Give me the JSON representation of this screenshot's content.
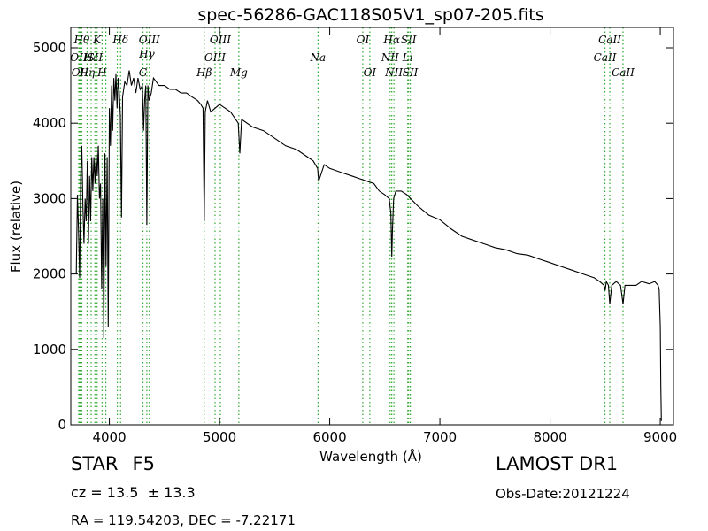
{
  "chart_data": {
    "type": "line",
    "title": "spec-56286-GAC118S05V1_sp07-205.fits",
    "xlabel": "Wavelength (Å)",
    "ylabel": "Flux (relative)",
    "xlim": [
      3650,
      9120
    ],
    "ylim": [
      0,
      5270
    ],
    "xticks": [
      4000,
      5000,
      6000,
      7000,
      8000,
      9000
    ],
    "yticks": [
      0,
      1000,
      2000,
      3000,
      4000,
      5000
    ],
    "grid": false,
    "line_color": "#000000",
    "marker_color": "#33aa33",
    "series": [
      {
        "x": [
          3700,
          3710,
          3720,
          3730,
          3740,
          3750,
          3760,
          3770,
          3780,
          3790,
          3800,
          3810,
          3820,
          3830,
          3840,
          3850,
          3860,
          3870,
          3880,
          3890,
          3900,
          3910,
          3920,
          3930,
          3940,
          3950,
          3960,
          3970,
          3980,
          3990,
          4000,
          4010,
          4020,
          4030,
          4040,
          4050,
          4060,
          4070,
          4080,
          4090,
          4100,
          4110,
          4120,
          4140,
          4160,
          4180,
          4200,
          4220,
          4240,
          4260,
          4280,
          4300,
          4310,
          4320,
          4330,
          4340,
          4350,
          4360,
          4380,
          4400,
          4450,
          4500,
          4550,
          4600,
          4650,
          4700,
          4750,
          4800,
          4830,
          4850,
          4861,
          4870,
          4890,
          4920,
          4960,
          5000,
          5100,
          5170,
          5184,
          5200,
          5300,
          5400,
          5500,
          5600,
          5700,
          5800,
          5850,
          5890,
          5900,
          5950,
          6000,
          6100,
          6200,
          6300,
          6400,
          6450,
          6500,
          6540,
          6555,
          6563,
          6570,
          6580,
          6600,
          6650,
          6700,
          6800,
          6900,
          7000,
          7100,
          7200,
          7300,
          7400,
          7500,
          7600,
          7700,
          7800,
          7900,
          8000,
          8100,
          8200,
          8300,
          8400,
          8450,
          8490,
          8500,
          8510,
          8530,
          8542,
          8560,
          8600,
          8640,
          8662,
          8680,
          8720,
          8780,
          8830,
          8900,
          8950,
          8980,
          8990,
          9000,
          9005,
          9010
        ],
        "y": [
          2000,
          3050,
          2600,
          1950,
          3300,
          3700,
          2900,
          2400,
          3000,
          2700,
          3500,
          2400,
          3300,
          2700,
          3550,
          3100,
          3550,
          3200,
          3600,
          3300,
          3700,
          3000,
          3200,
          1800,
          3000,
          1150,
          3600,
          2100,
          3550,
          1300,
          4200,
          3700,
          4500,
          3900,
          4600,
          4300,
          4650,
          4200,
          4600,
          4400,
          4100,
          2750,
          4350,
          4550,
          4500,
          4700,
          4500,
          4600,
          4400,
          4600,
          4450,
          4500,
          3900,
          4300,
          4500,
          2650,
          4500,
          4300,
          4400,
          4600,
          4500,
          4500,
          4450,
          4450,
          4400,
          4400,
          4350,
          4300,
          4250,
          4200,
          2700,
          4150,
          4300,
          4150,
          4200,
          4250,
          4150,
          4000,
          3600,
          4050,
          3950,
          3900,
          3800,
          3700,
          3650,
          3550,
          3500,
          3400,
          3230,
          3450,
          3400,
          3350,
          3300,
          3250,
          3200,
          3100,
          3050,
          3000,
          2800,
          2230,
          2600,
          3000,
          3100,
          3100,
          3050,
          2900,
          2780,
          2720,
          2600,
          2500,
          2450,
          2400,
          2350,
          2320,
          2270,
          2250,
          2200,
          2150,
          2100,
          2050,
          2000,
          1950,
          1900,
          1850,
          1780,
          1900,
          1850,
          1600,
          1850,
          1900,
          1850,
          1600,
          1850,
          1850,
          1850,
          1900,
          1870,
          1900,
          1850,
          1800,
          1300,
          500,
          50
        ]
      }
    ],
    "line_markers": [
      {
        "x": 3722,
        "labels": [
          "OII"
        ],
        "pos": "mid"
      },
      {
        "x": 3729,
        "labels": [],
        "pos": "mid"
      },
      {
        "x": 3734,
        "labels": [
          "OII"
        ],
        "pos": "low"
      },
      {
        "x": 3750,
        "labels": [
          "Hθ"
        ],
        "pos": "high"
      },
      {
        "x": 3798,
        "labels": [
          "Hη"
        ],
        "pos": "low"
      },
      {
        "x": 3835,
        "labels": [
          "Hε"
        ],
        "pos": "mid"
      },
      {
        "x": 3869,
        "labels": [
          "SII"
        ],
        "pos": "mid"
      },
      {
        "x": 3889,
        "labels": [
          "K"
        ],
        "pos": "high"
      },
      {
        "x": 3934,
        "labels": [
          "H"
        ],
        "pos": "low"
      },
      {
        "x": 3968,
        "labels": [],
        "pos": "low"
      },
      {
        "x": 4072,
        "labels": [],
        "pos": "mid"
      },
      {
        "x": 4102,
        "labels": [
          "Hδ"
        ],
        "pos": "high"
      },
      {
        "x": 4305,
        "labels": [
          "G"
        ],
        "pos": "low"
      },
      {
        "x": 4340,
        "labels": [
          "Hγ"
        ],
        "pos": "midhigh"
      },
      {
        "x": 4363,
        "labels": [
          "OIII"
        ],
        "pos": "high"
      },
      {
        "x": 4861,
        "labels": [
          "Hβ"
        ],
        "pos": "low"
      },
      {
        "x": 4959,
        "labels": [
          "OIII"
        ],
        "pos": "mid"
      },
      {
        "x": 5007,
        "labels": [
          "OIII"
        ],
        "pos": "high"
      },
      {
        "x": 5175,
        "labels": [
          "Mg"
        ],
        "pos": "low"
      },
      {
        "x": 5894,
        "labels": [
          "Na"
        ],
        "pos": "mid"
      },
      {
        "x": 6300,
        "labels": [
          "OI"
        ],
        "pos": "high"
      },
      {
        "x": 6364,
        "labels": [
          "OI"
        ],
        "pos": "low"
      },
      {
        "x": 6548,
        "labels": [
          "NII"
        ],
        "pos": "mid"
      },
      {
        "x": 6563,
        "labels": [
          "Hα"
        ],
        "pos": "high"
      },
      {
        "x": 6583,
        "labels": [
          "NII"
        ],
        "pos": "low"
      },
      {
        "x": 6708,
        "labels": [
          "Li"
        ],
        "pos": "mid"
      },
      {
        "x": 6716,
        "labels": [
          "SII"
        ],
        "pos": "high"
      },
      {
        "x": 6731,
        "labels": [
          "SII"
        ],
        "pos": "low"
      },
      {
        "x": 8498,
        "labels": [
          "CaII"
        ],
        "pos": "mid"
      },
      {
        "x": 8542,
        "labels": [
          "CaII"
        ],
        "pos": "high"
      },
      {
        "x": 8662,
        "labels": [
          "CaII"
        ],
        "pos": "low"
      }
    ]
  },
  "info": {
    "class_label": "STAR",
    "subclass": "F5",
    "redshift": "cz = 13.5  ± 13.3",
    "coordinates": "RA = 119.54203, DEC = -7.22171",
    "survey": "LAMOST DR1",
    "obs_date": "Obs-Date:20121224"
  }
}
